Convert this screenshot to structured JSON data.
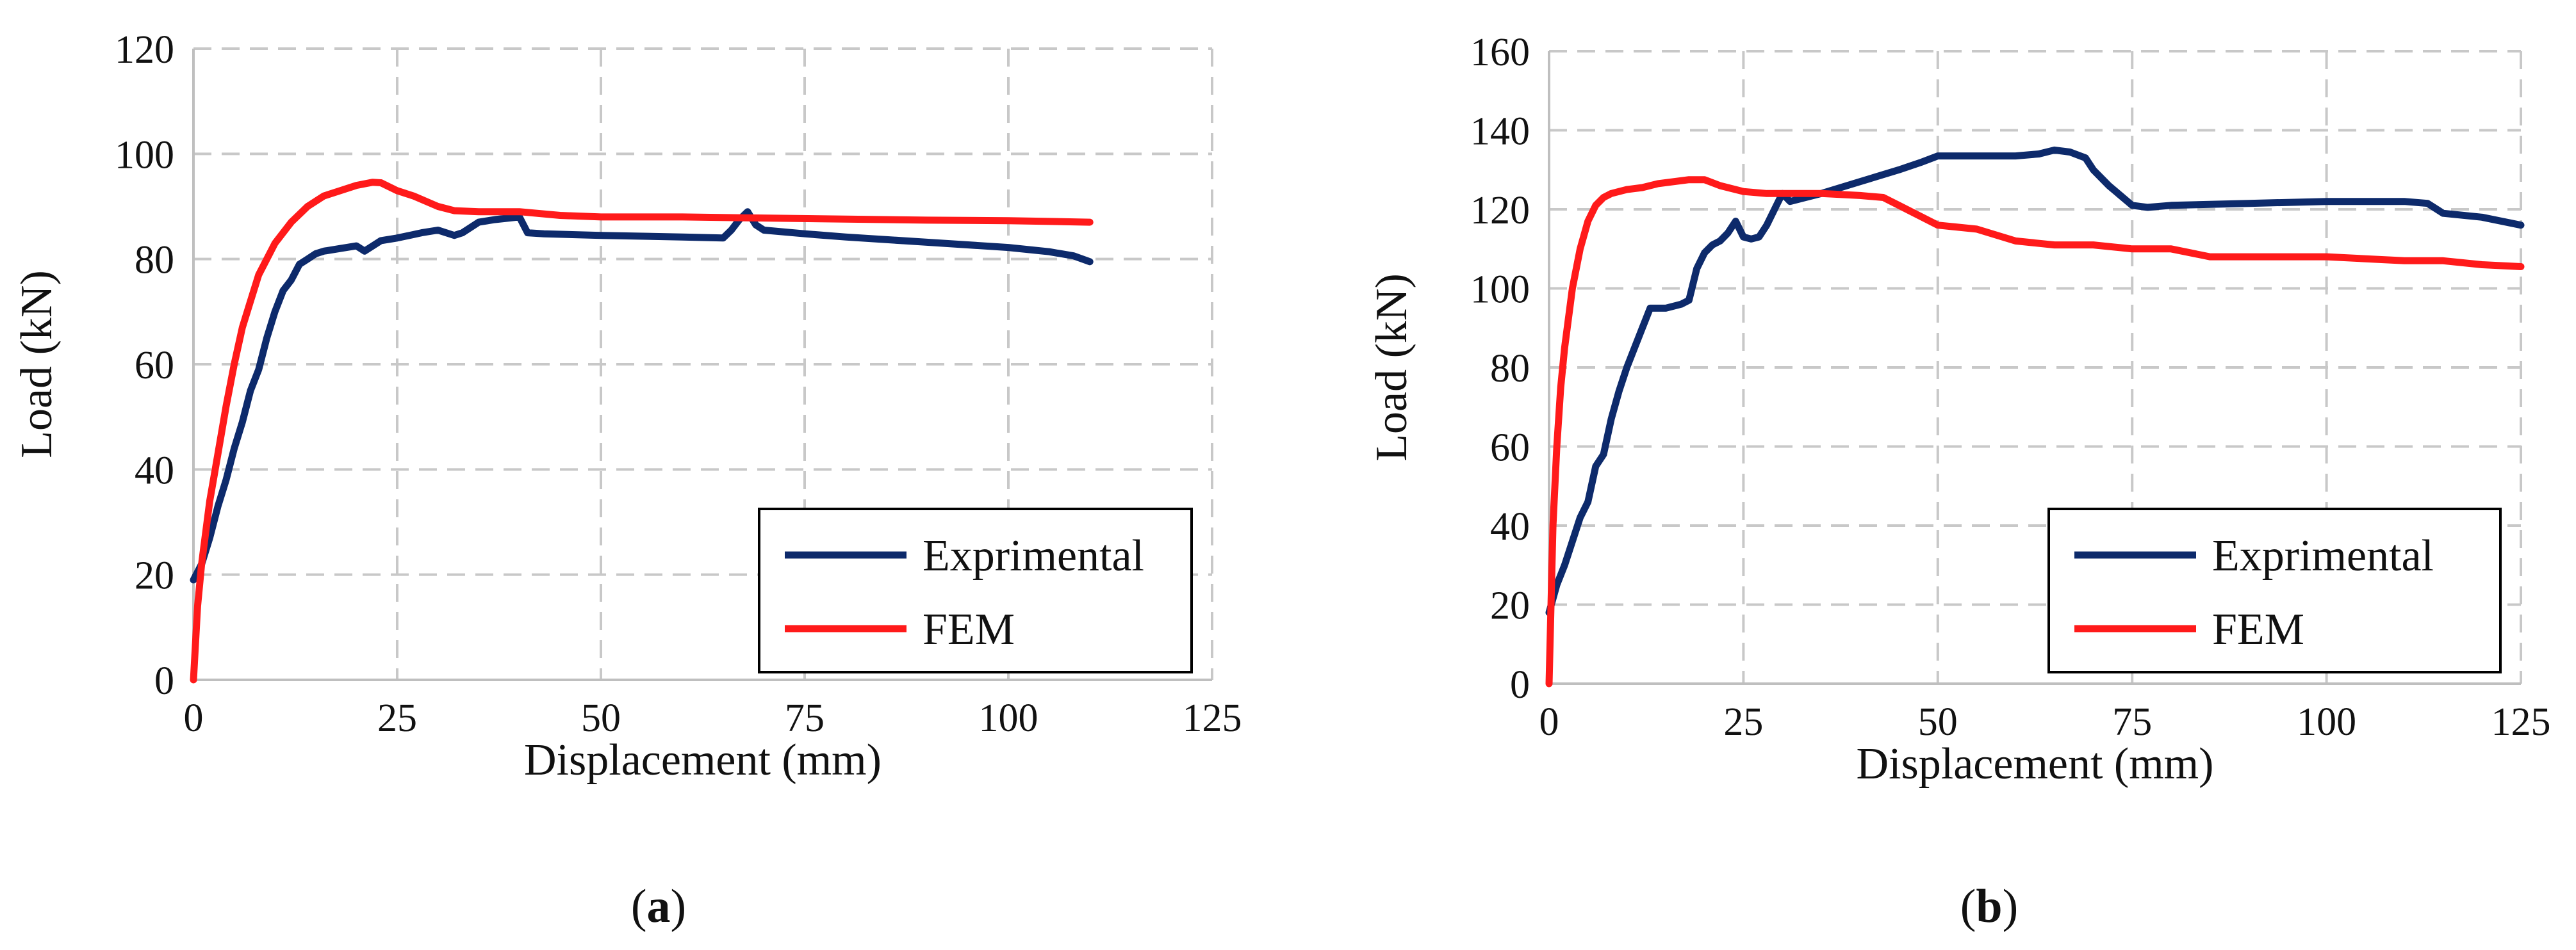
{
  "colors": {
    "Exprimental": "#0d2a6b",
    "FEM": "#ff1a1a"
  },
  "chart_data": [
    {
      "type": "line",
      "caption": {
        "open": "(",
        "letter": "a",
        "close": ")"
      },
      "xlabel": "Displacement (mm)",
      "ylabel": "Load (kN)",
      "xlim": [
        0,
        125
      ],
      "ylim": [
        0,
        120
      ],
      "xticks": [
        0,
        25,
        50,
        75,
        100,
        125
      ],
      "yticks": [
        0,
        20,
        40,
        60,
        80,
        100,
        120
      ],
      "grid": true,
      "legend_position": "bottom-right",
      "series": [
        {
          "name": "Exprimental",
          "x": [
            0,
            1,
            2,
            3,
            4,
            5,
            6,
            7,
            8,
            9,
            10,
            11,
            12,
            13,
            14,
            15,
            16,
            18,
            20,
            21,
            22,
            23,
            25,
            28,
            30,
            32,
            33,
            35,
            37,
            40,
            41,
            43,
            50,
            60,
            65,
            66,
            67,
            68,
            69,
            70,
            75,
            80,
            90,
            100,
            105,
            108,
            110
          ],
          "y": [
            19,
            22,
            27,
            33,
            38,
            44,
            49,
            55,
            59,
            65,
            70,
            74,
            76,
            79,
            80,
            81,
            81.5,
            82,
            82.5,
            81.5,
            82.5,
            83.5,
            84,
            85,
            85.5,
            84.5,
            85,
            87,
            87.5,
            88,
            85,
            84.8,
            84.5,
            84.2,
            84,
            85.5,
            87.5,
            89,
            86.5,
            85.5,
            84.8,
            84.2,
            83.2,
            82.2,
            81.4,
            80.6,
            79.5
          ]
        },
        {
          "name": "FEM",
          "x": [
            0,
            0.5,
            1,
            2,
            3,
            4,
            5,
            6,
            7,
            8,
            9,
            10,
            12,
            14,
            16,
            18,
            20,
            22,
            23,
            25,
            27,
            30,
            32,
            35,
            40,
            45,
            50,
            60,
            70,
            80,
            90,
            100,
            110
          ],
          "y": [
            0,
            14,
            22,
            34,
            43,
            52,
            60,
            67,
            72,
            77,
            80,
            83,
            87,
            90,
            92,
            93,
            94,
            94.6,
            94.5,
            93,
            92,
            90,
            89.2,
            89,
            89,
            88.3,
            88,
            88,
            87.8,
            87.6,
            87.4,
            87.3,
            87
          ]
        }
      ]
    },
    {
      "type": "line",
      "caption": {
        "open": "(",
        "letter": "b",
        "close": ")"
      },
      "xlabel": "Displacement (mm)",
      "ylabel": "Load (kN)",
      "xlim": [
        0,
        125
      ],
      "ylim": [
        0,
        160
      ],
      "xticks": [
        0,
        25,
        50,
        75,
        100,
        125
      ],
      "yticks": [
        0,
        20,
        40,
        60,
        80,
        100,
        120,
        140,
        160
      ],
      "grid": true,
      "legend_position": "bottom-right",
      "series": [
        {
          "name": "Exprimental",
          "x": [
            0,
            1,
            2,
            3,
            4,
            5,
            6,
            7,
            8,
            9,
            10,
            11,
            12,
            13,
            14,
            15,
            16,
            17,
            18,
            19,
            20,
            21,
            22,
            23,
            24,
            25,
            26,
            27,
            28,
            29,
            30,
            31,
            35,
            40,
            45,
            48,
            50,
            55,
            60,
            63,
            65,
            67,
            69,
            70,
            72,
            75,
            77,
            80,
            90,
            100,
            110,
            113,
            115,
            120,
            125
          ],
          "y": [
            18,
            25,
            30,
            36,
            42,
            46,
            55,
            58,
            67,
            74,
            80,
            85,
            90,
            95,
            95,
            95,
            95.5,
            96,
            97,
            105,
            109,
            111,
            112,
            114,
            117,
            113,
            112.5,
            113,
            116,
            120,
            124,
            122,
            124,
            127,
            130,
            132,
            133.5,
            133.5,
            133.5,
            134,
            135,
            134.5,
            133,
            130,
            126,
            121,
            120.5,
            121,
            121.5,
            122,
            122,
            121.5,
            119,
            118,
            116
          ]
        },
        {
          "name": "FEM",
          "x": [
            0,
            0.5,
            1,
            1.5,
            2,
            3,
            4,
            5,
            6,
            7,
            8,
            9,
            10,
            12,
            14,
            16,
            18,
            20,
            22,
            25,
            28,
            30,
            35,
            40,
            43,
            45,
            48,
            50,
            55,
            60,
            65,
            70,
            75,
            80,
            85,
            90,
            95,
            100,
            105,
            110,
            115,
            120,
            125
          ],
          "y": [
            0,
            40,
            60,
            75,
            85,
            100,
            110,
            117,
            121,
            123,
            124,
            124.5,
            125,
            125.5,
            126.5,
            127,
            127.5,
            127.5,
            126,
            124.5,
            124,
            124,
            124,
            123.5,
            123,
            121,
            118,
            116,
            115,
            112,
            111,
            111,
            110,
            110,
            108,
            108,
            108,
            108,
            107.5,
            107,
            107,
            106,
            105.5
          ]
        }
      ]
    }
  ]
}
